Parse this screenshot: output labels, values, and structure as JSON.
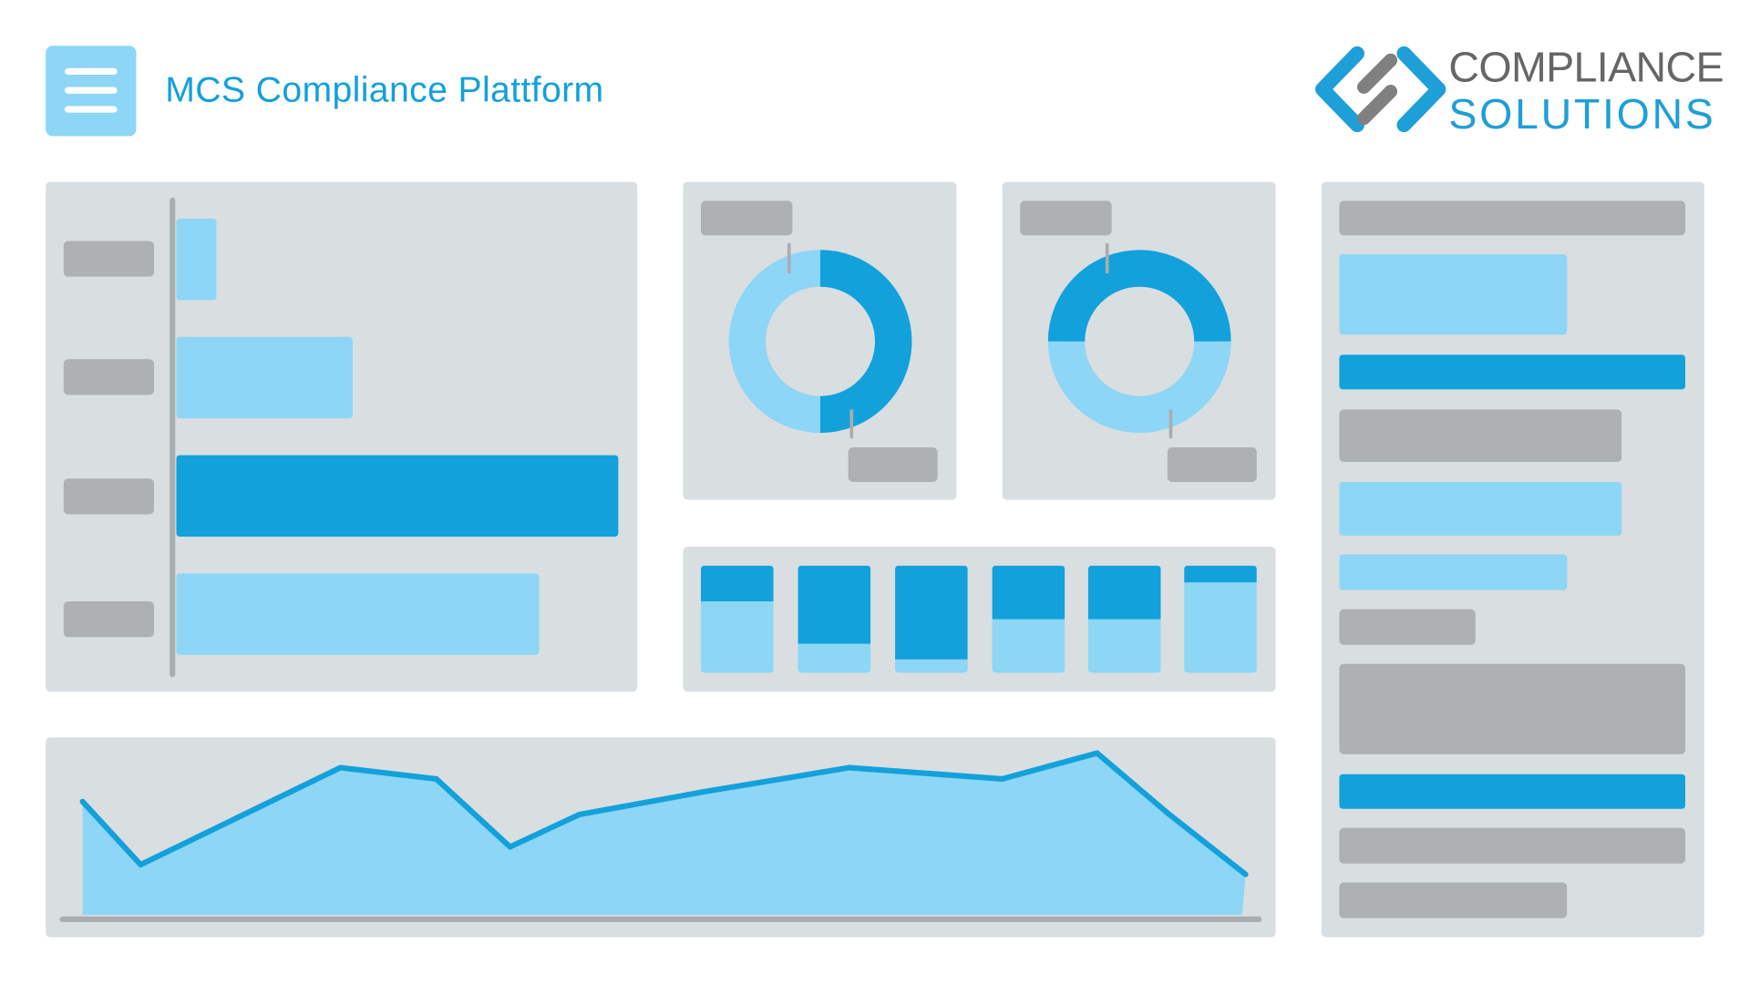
{
  "header": {
    "title": "MCS Compliance Plattform",
    "menu_icon": "hamburger-menu-icon"
  },
  "logo": {
    "line1": "COMPLIANCE",
    "line2": "SOLUTIONS",
    "icon": "s-diamond-logo-icon"
  },
  "colors": {
    "panel": "#D9DEE1",
    "placeholder": "#AEB1B4",
    "light_blue": "#8DD6F5",
    "dark_blue": "#12A1DB",
    "title_blue": "#14A0DA",
    "logo_gray": "#666666"
  },
  "chart_data": [
    {
      "type": "bar",
      "orientation": "horizontal",
      "values": [
        9,
        40,
        100,
        82
      ],
      "highlight_index": 2
    },
    {
      "type": "pie",
      "variant": "donut",
      "slices": [
        50,
        50
      ],
      "dark_slice_side": "right"
    },
    {
      "type": "pie",
      "variant": "donut",
      "slices": [
        50,
        50
      ],
      "dark_slice_side": "top"
    },
    {
      "type": "bar",
      "variant": "stacked-100",
      "dark_share": [
        33,
        73,
        87,
        50,
        50,
        16
      ]
    },
    {
      "type": "area",
      "values": [
        70,
        31,
        91,
        84,
        42,
        62,
        76,
        91,
        84,
        100,
        63,
        25
      ]
    }
  ]
}
